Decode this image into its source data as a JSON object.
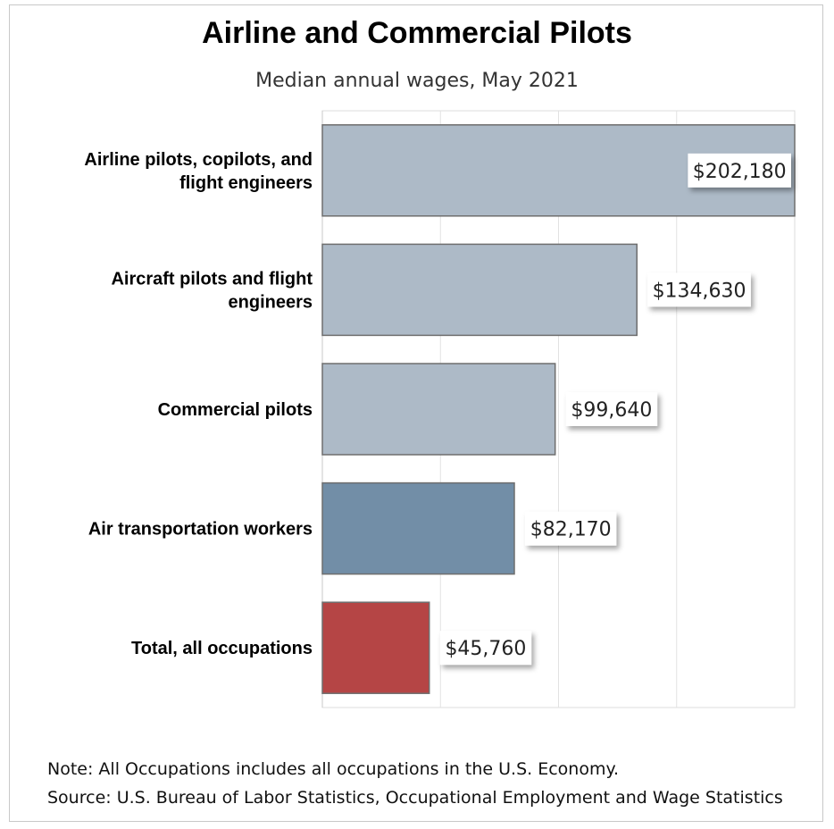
{
  "chart_data": {
    "type": "bar",
    "orientation": "horizontal",
    "title": "Airline and Commercial Pilots",
    "subtitle": "Median annual wages, May 2021",
    "categories": [
      [
        "Airline pilots, copilots, and",
        "flight engineers"
      ],
      [
        "Aircraft pilots and flight",
        "engineers"
      ],
      [
        "Commercial pilots"
      ],
      [
        "Air transportation workers"
      ],
      [
        "Total, all occupations"
      ]
    ],
    "values": [
      202180,
      134630,
      99640,
      82170,
      45760
    ],
    "value_labels": [
      "$202,180",
      "$134,630",
      "$99,640",
      "$82,170",
      "$45,760"
    ],
    "bar_colors": [
      "#adbac7",
      "#adbac7",
      "#adbac7",
      "#728ea7",
      "#b54545"
    ],
    "xlim": [
      0,
      202180
    ],
    "grid": true,
    "legend": "none"
  },
  "notes": {
    "note": "Note: All Occupations includes all occupations in the U.S. Economy.",
    "source": "Source: U.S. Bureau of Labor Statistics, Occupational Employment and Wage Statistics"
  }
}
